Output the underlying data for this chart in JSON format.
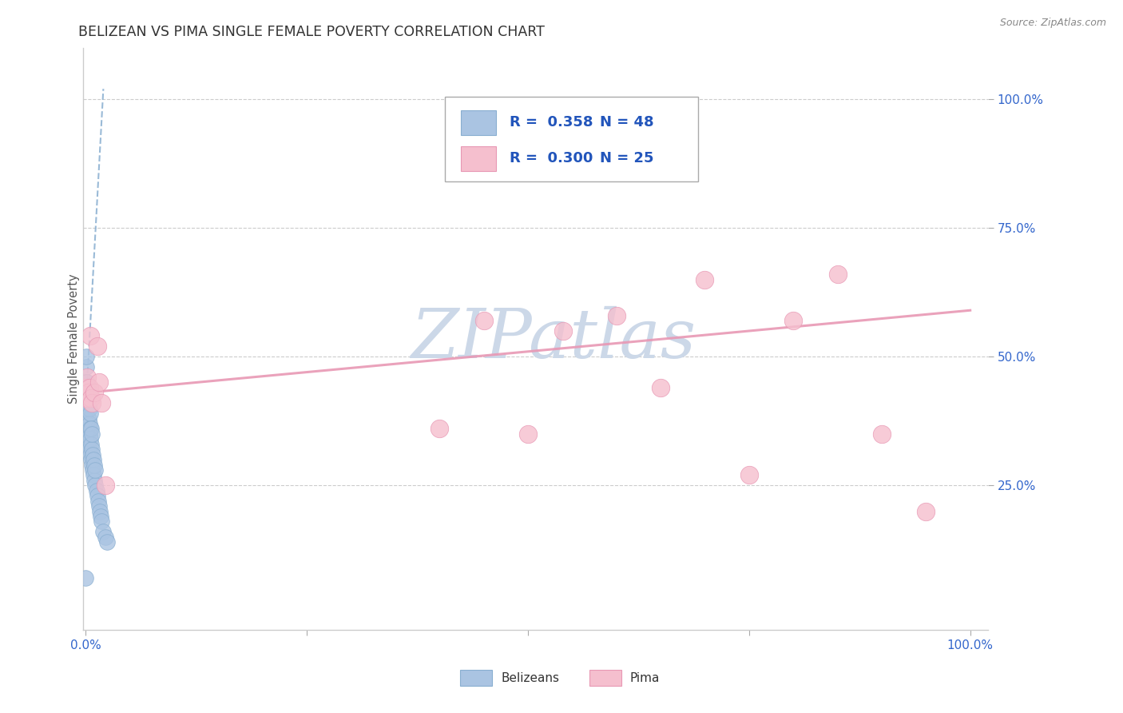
{
  "title": "BELIZEAN VS PIMA SINGLE FEMALE POVERTY CORRELATION CHART",
  "source": "Source: ZipAtlas.com",
  "ylabel": "Single Female Poverty",
  "belizean_color": "#aac4e2",
  "belizean_edge": "#88aed0",
  "pima_color": "#f5bfce",
  "pima_edge": "#e898b4",
  "blue_line_color": "#88aed0",
  "pink_line_color": "#e898b4",
  "R_belizean": 0.358,
  "N_belizean": 48,
  "R_pima": 0.3,
  "N_pima": 25,
  "legend_text_color": "#2255bb",
  "watermark": "ZIPatlas",
  "watermark_color": "#ccd8e8",
  "bel_x": [
    0.0,
    0.001,
    0.001,
    0.001,
    0.001,
    0.002,
    0.002,
    0.002,
    0.002,
    0.002,
    0.003,
    0.003,
    0.003,
    0.003,
    0.003,
    0.004,
    0.004,
    0.004,
    0.004,
    0.005,
    0.005,
    0.005,
    0.005,
    0.006,
    0.006,
    0.006,
    0.007,
    0.007,
    0.007,
    0.008,
    0.008,
    0.009,
    0.009,
    0.01,
    0.01,
    0.011,
    0.011,
    0.012,
    0.013,
    0.014,
    0.015,
    0.016,
    0.017,
    0.018,
    0.02,
    0.022,
    0.024,
    0.0
  ],
  "bel_y": [
    0.38,
    0.42,
    0.45,
    0.48,
    0.5,
    0.35,
    0.37,
    0.4,
    0.43,
    0.45,
    0.33,
    0.36,
    0.38,
    0.41,
    0.44,
    0.32,
    0.35,
    0.37,
    0.4,
    0.31,
    0.34,
    0.36,
    0.39,
    0.3,
    0.33,
    0.36,
    0.29,
    0.32,
    0.35,
    0.28,
    0.31,
    0.27,
    0.3,
    0.26,
    0.29,
    0.25,
    0.28,
    0.24,
    0.23,
    0.22,
    0.21,
    0.2,
    0.19,
    0.18,
    0.16,
    0.15,
    0.14,
    0.07
  ],
  "pima_x": [
    0.0,
    0.001,
    0.002,
    0.003,
    0.004,
    0.005,
    0.006,
    0.007,
    0.01,
    0.013,
    0.015,
    0.018,
    0.022,
    0.4,
    0.45,
    0.5,
    0.54,
    0.6,
    0.65,
    0.7,
    0.75,
    0.8,
    0.85,
    0.9,
    0.95
  ],
  "pima_y": [
    0.44,
    0.42,
    0.46,
    0.43,
    0.44,
    0.54,
    0.42,
    0.41,
    0.43,
    0.52,
    0.45,
    0.41,
    0.25,
    0.36,
    0.57,
    0.35,
    0.55,
    0.58,
    0.44,
    0.65,
    0.27,
    0.57,
    0.66,
    0.35,
    0.2
  ],
  "bel_line_x": [
    0.0,
    0.02
  ],
  "bel_line_y": [
    0.4,
    1.02
  ],
  "pima_line_x": [
    0.0,
    1.0
  ],
  "pima_line_y": [
    0.43,
    0.59
  ],
  "xlim": [
    -0.003,
    1.02
  ],
  "ylim": [
    -0.03,
    1.1
  ],
  "xticks": [
    0.0,
    0.25,
    0.5,
    0.75,
    1.0
  ],
  "xtick_labels": [
    "0.0%",
    "",
    "",
    "",
    "100.0%"
  ],
  "yticks": [
    0.25,
    0.5,
    0.75,
    1.0
  ],
  "ytick_labels": [
    "25.0%",
    "50.0%",
    "75.0%",
    "100.0%"
  ]
}
